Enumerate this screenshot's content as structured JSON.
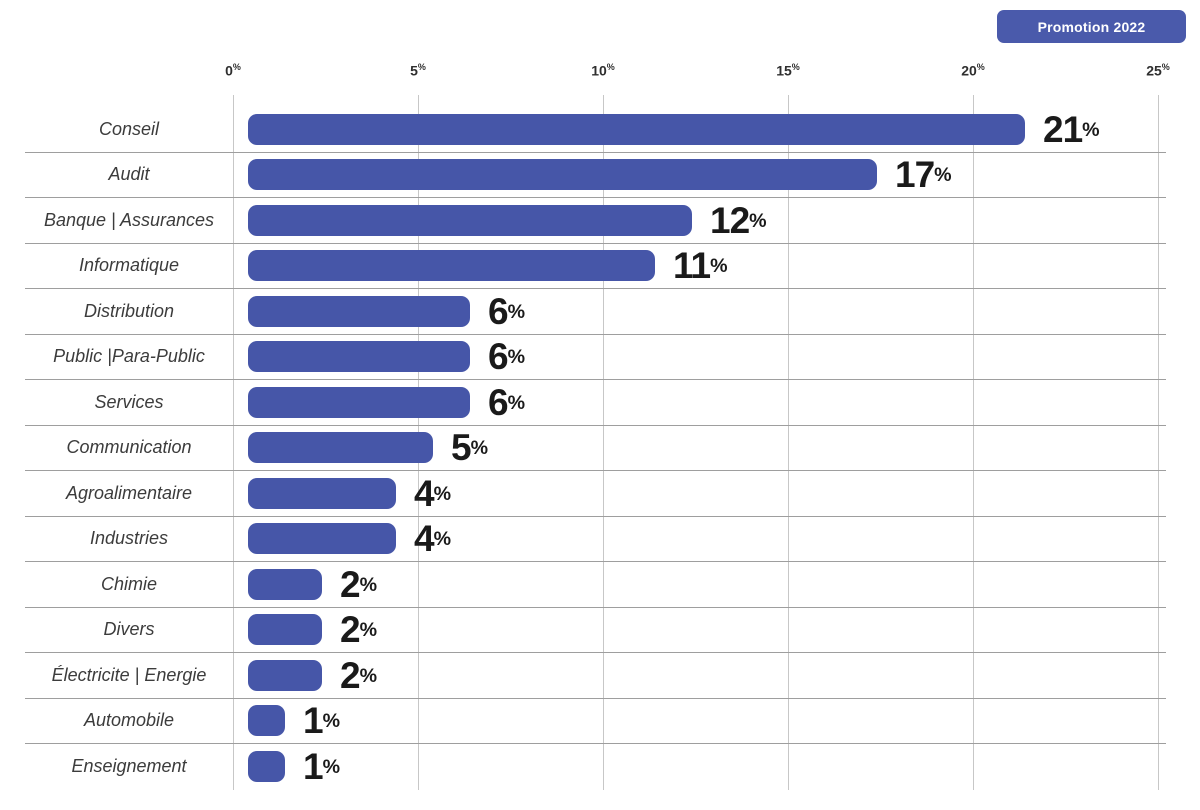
{
  "badge": {
    "label": "Promotion 2022",
    "color": "#4a5aab"
  },
  "chart_data": {
    "type": "bar",
    "orientation": "horizontal",
    "title": "",
    "legend": [
      "Promotion 2022"
    ],
    "legend_position": "top-right",
    "categories": [
      "Conseil",
      "Audit",
      "Banque | Assurances",
      "Informatique",
      "Distribution",
      "Public |Para-Public",
      "Services",
      "Communication",
      "Agroalimentaire",
      "Industries",
      "Chimie",
      "Divers",
      "Électricite | Energie",
      "Automobile",
      "Enseignement"
    ],
    "values": [
      21,
      17,
      12,
      11,
      6,
      6,
      6,
      5,
      4,
      4,
      2,
      2,
      2,
      1,
      1
    ],
    "value_suffix": "%",
    "x_ticks": [
      "0",
      "5",
      "10",
      "15",
      "20",
      "25"
    ],
    "x_tick_suffix": "%",
    "xlim": [
      0,
      25
    ],
    "grid": true,
    "bar_color": "#4656a8",
    "grid_vline_color": "#c7c7c7",
    "grid_hline_color": "#9e9e9e",
    "value_label_color": "#1a1a1a",
    "category_label_color": "#3c3c3c"
  }
}
